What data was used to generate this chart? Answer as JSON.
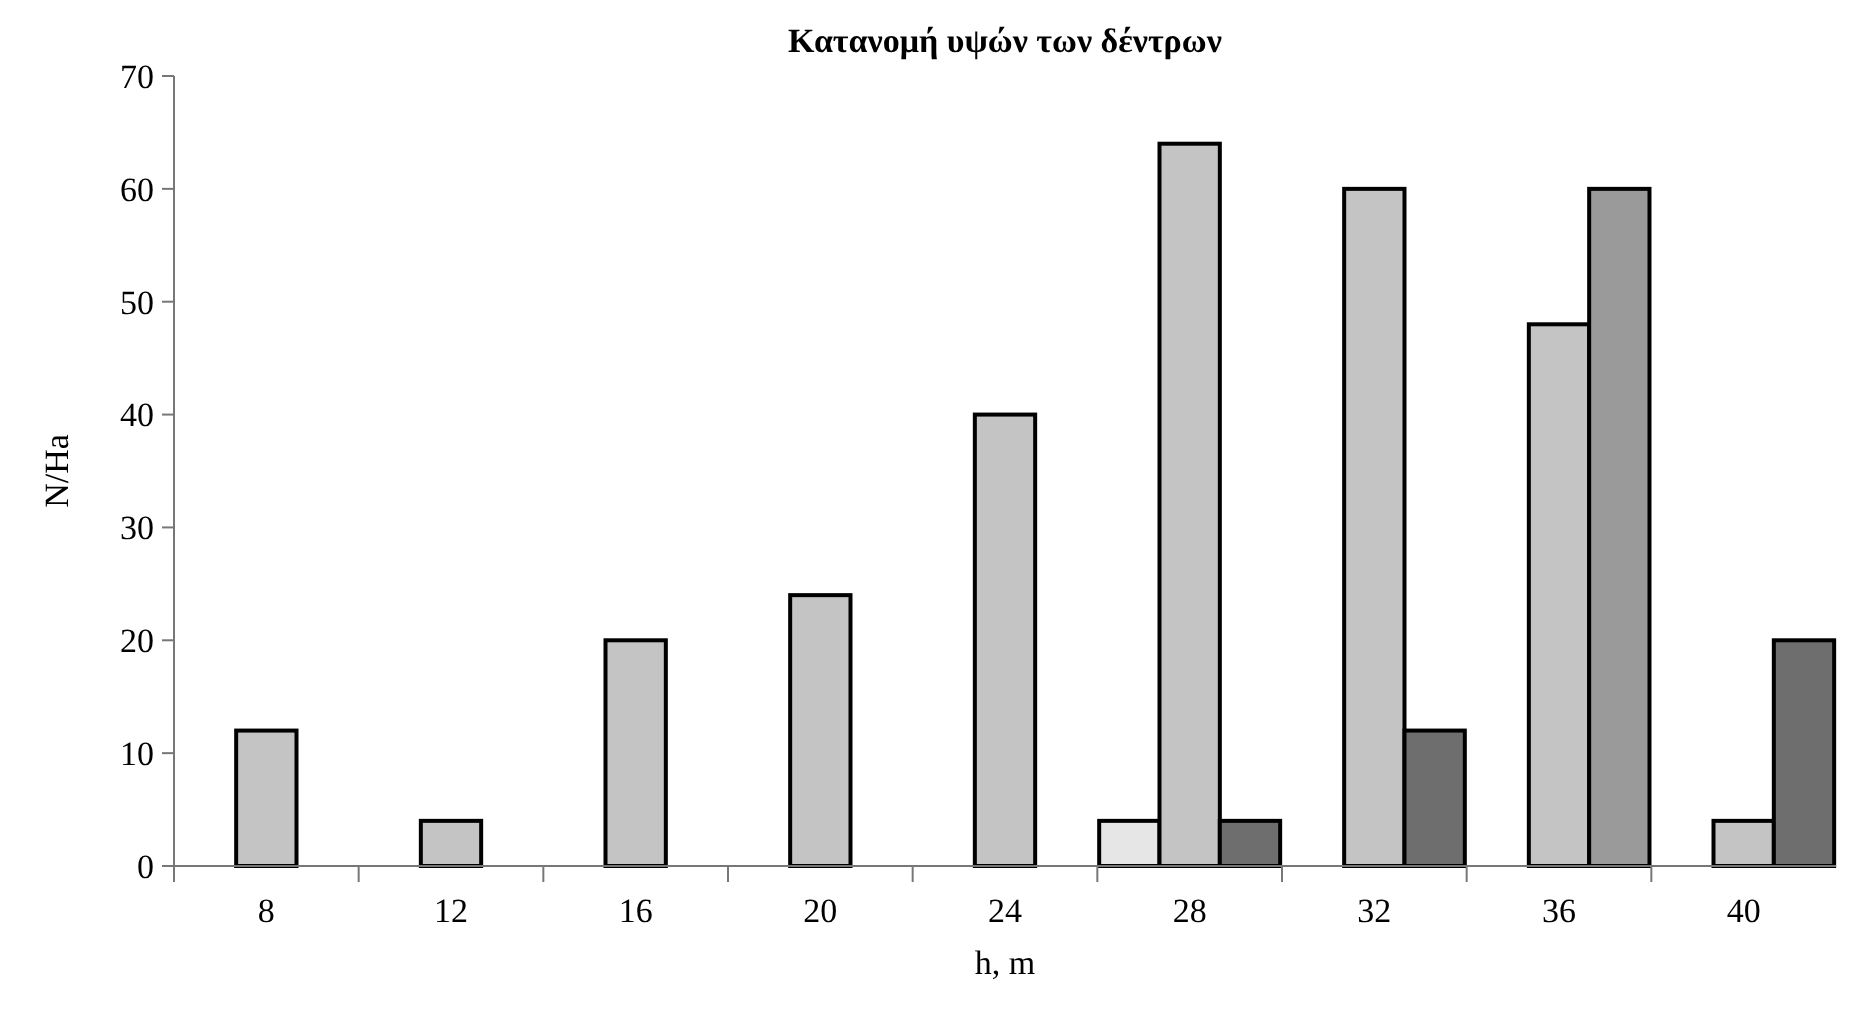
{
  "chart_data": {
    "type": "bar",
    "title": "Κατανομή υψών των δέντρων",
    "xlabel": "h, m",
    "ylabel": "N/Ha",
    "categories": [
      "8",
      "12",
      "16",
      "20",
      "24",
      "28",
      "32",
      "36",
      "40"
    ],
    "series": [
      {
        "color": "#e6e6e6",
        "values": [
          null,
          null,
          null,
          null,
          null,
          4,
          null,
          null,
          null
        ]
      },
      {
        "color": "#c4c4c4",
        "values": [
          12,
          4,
          20,
          24,
          40,
          64,
          60,
          48,
          4
        ]
      },
      {
        "colors": [
          null,
          null,
          null,
          null,
          null,
          "#6e6e6e",
          "#6e6e6e",
          "#9a9a9a",
          "#6e6e6e"
        ],
        "values": [
          null,
          null,
          null,
          null,
          null,
          4,
          12,
          60,
          20
        ]
      }
    ],
    "ylim": [
      0,
      70
    ],
    "yticks": [
      0,
      10,
      20,
      30,
      40,
      50,
      60,
      70
    ],
    "grid": false
  }
}
